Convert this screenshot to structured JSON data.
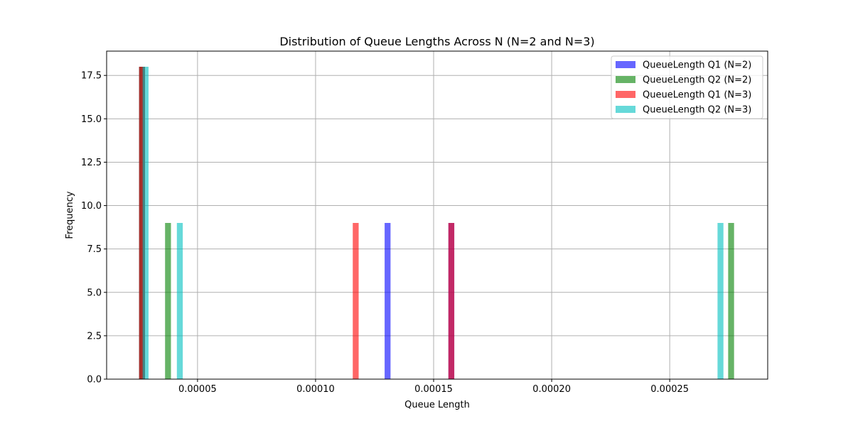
{
  "chart_data": {
    "type": "bar",
    "title": "Distribution of Queue Lengths Across N (N=2 and N=3)",
    "xlabel": "Queue Length",
    "ylabel": "Frequency",
    "xlim": [
      1.15e-05,
      0.0002915
    ],
    "ylim": [
      0,
      18.9
    ],
    "xticks": [
      {
        "value": 5e-05,
        "label": "0.00005"
      },
      {
        "value": 0.0001,
        "label": "0.00010"
      },
      {
        "value": 0.00015,
        "label": "0.00015"
      },
      {
        "value": 0.0002,
        "label": "0.00020"
      },
      {
        "value": 0.00025,
        "label": "0.00025"
      }
    ],
    "yticks": [
      {
        "value": 0,
        "label": "0.0"
      },
      {
        "value": 2.5,
        "label": "2.5"
      },
      {
        "value": 5,
        "label": "5.0"
      },
      {
        "value": 7.5,
        "label": "7.5"
      },
      {
        "value": 10,
        "label": "10.0"
      },
      {
        "value": 12.5,
        "label": "12.5"
      },
      {
        "value": 15,
        "label": "15.0"
      },
      {
        "value": 17.5,
        "label": "17.5"
      }
    ],
    "grid": true,
    "legend_position": "top-right",
    "bar_width": 2.5e-06,
    "series": [
      {
        "name": "QueueLength Q1 (N=2)",
        "color": "#0000ff",
        "opacity": 0.6,
        "bars": [
          {
            "x": 2.65e-05,
            "value": 18
          },
          {
            "x": 0.0001305,
            "value": 9
          },
          {
            "x": 0.0001575,
            "value": 9
          }
        ]
      },
      {
        "name": "QueueLength Q2 (N=2)",
        "color": "#008000",
        "opacity": 0.6,
        "bars": [
          {
            "x": 2.65e-05,
            "value": 18
          },
          {
            "x": 3.75e-05,
            "value": 9
          },
          {
            "x": 0.000276,
            "value": 9
          }
        ]
      },
      {
        "name": "QueueLength Q1 (N=3)",
        "color": "#ff0000",
        "opacity": 0.6,
        "bars": [
          {
            "x": 2.65e-05,
            "value": 18
          },
          {
            "x": 0.000117,
            "value": 9
          },
          {
            "x": 0.0001575,
            "value": 9
          }
        ]
      },
      {
        "name": "QueueLength Q2 (N=3)",
        "color": "#00bfbf",
        "opacity": 0.6,
        "bars": [
          {
            "x": 2.8e-05,
            "value": 18
          },
          {
            "x": 4.25e-05,
            "value": 9
          },
          {
            "x": 0.0002715,
            "value": 9
          }
        ]
      }
    ]
  }
}
